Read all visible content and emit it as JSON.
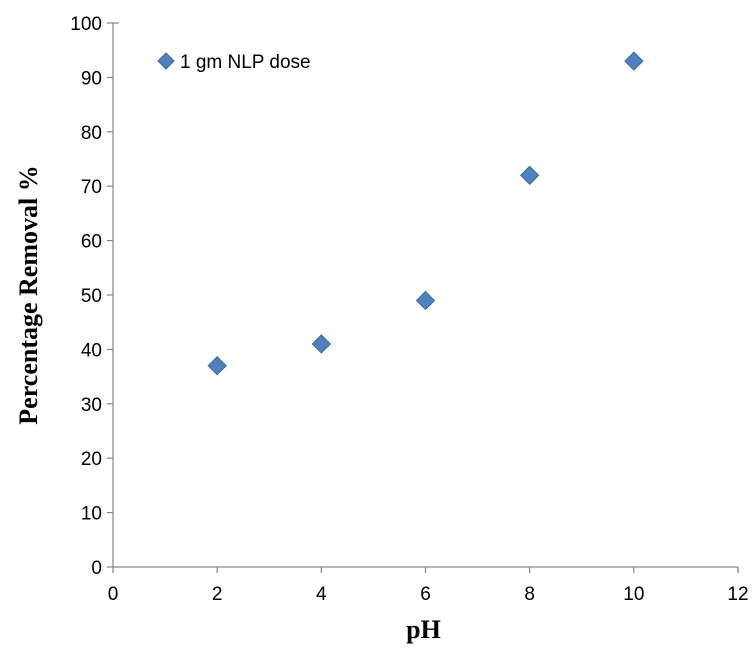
{
  "chart_data": {
    "type": "scatter",
    "title": "",
    "xlabel": "pH",
    "ylabel": "Percentage Removal %",
    "xlim": [
      0,
      12
    ],
    "ylim": [
      0,
      100
    ],
    "xticks": [
      0,
      2,
      4,
      6,
      8,
      10,
      12
    ],
    "yticks": [
      0,
      10,
      20,
      30,
      40,
      50,
      60,
      70,
      80,
      90,
      100
    ],
    "grid": false,
    "legend_position": "top-left",
    "series": [
      {
        "name": "1 gm NLP dose",
        "marker": "diamond",
        "color": "#4F81BD",
        "edge_color": "#3A6AA0",
        "points": [
          {
            "x": 2,
            "y": 37
          },
          {
            "x": 4,
            "y": 41
          },
          {
            "x": 6,
            "y": 49
          },
          {
            "x": 8,
            "y": 72
          },
          {
            "x": 10,
            "y": 93
          }
        ]
      }
    ],
    "axis_color": "#868686"
  }
}
